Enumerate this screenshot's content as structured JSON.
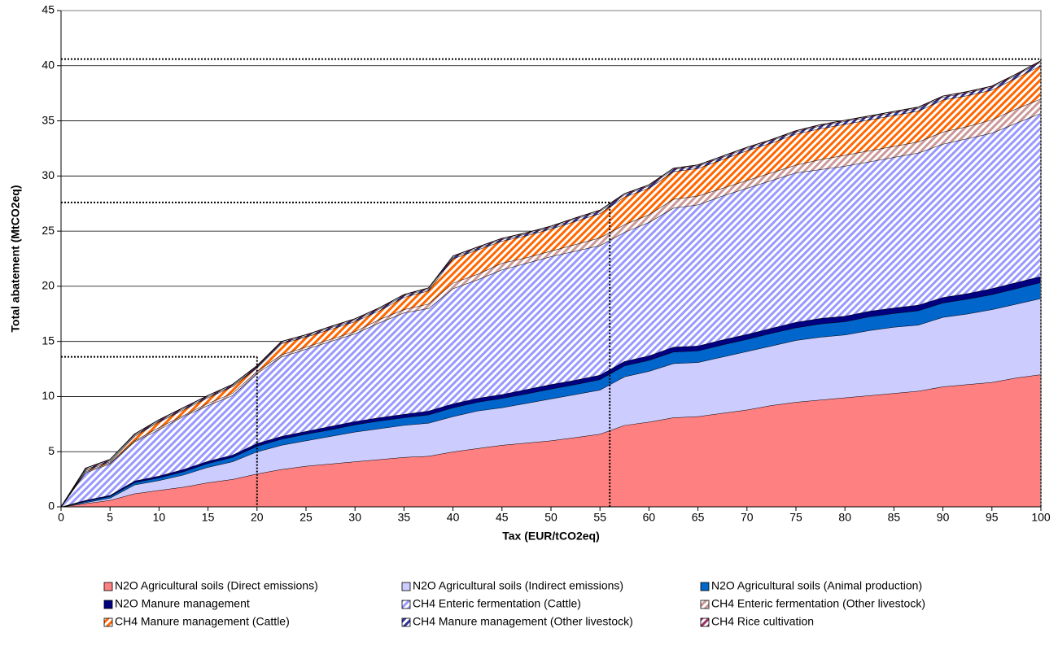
{
  "chart_data": {
    "type": "stacked_area",
    "x_label": "Tax (EUR/tCO2eq)",
    "y_label": "Total abatement (MtCO2eq)",
    "xlim": [
      0,
      100
    ],
    "ylim": [
      0,
      45
    ],
    "xticks": [
      0,
      5,
      10,
      15,
      20,
      25,
      30,
      35,
      40,
      45,
      50,
      55,
      60,
      65,
      70,
      75,
      80,
      85,
      90,
      95,
      100
    ],
    "yticks": [
      0,
      5,
      10,
      15,
      20,
      25,
      30,
      35,
      40,
      45
    ],
    "grid": true,
    "legend": "bottom",
    "x": [
      0,
      2.5,
      5,
      7.5,
      10,
      12.5,
      15,
      17.5,
      20,
      22.5,
      25,
      27.5,
      30,
      32.5,
      35,
      37.5,
      40,
      42.5,
      45,
      47.5,
      50,
      52.5,
      55,
      57.5,
      60,
      62.5,
      65,
      67.5,
      70,
      72.5,
      75,
      77.5,
      80,
      82.5,
      85,
      87.5,
      90,
      92.5,
      95,
      97.5,
      100
    ],
    "series": [
      {
        "name": "N2O Agricultural soils (Direct emissions)",
        "color": "#ff8080",
        "pattern": "solid",
        "values": [
          0,
          0.3,
          0.6,
          1.2,
          1.5,
          1.8,
          2.2,
          2.5,
          3.0,
          3.4,
          3.7,
          3.9,
          4.1,
          4.3,
          4.5,
          4.6,
          5.0,
          5.3,
          5.6,
          5.8,
          6.0,
          6.3,
          6.6,
          7.4,
          7.7,
          8.1,
          8.2,
          8.5,
          8.8,
          9.2,
          9.5,
          9.7,
          9.9,
          10.1,
          10.3,
          10.5,
          10.9,
          11.1,
          11.3,
          11.7,
          12.0
        ]
      },
      {
        "name": "N2O Agricultural soils (Indirect emissions)",
        "color": "#ccccff",
        "pattern": "solid",
        "values": [
          0,
          0.1,
          0.2,
          0.8,
          0.9,
          1.1,
          1.4,
          1.6,
          2.0,
          2.2,
          2.3,
          2.5,
          2.7,
          2.8,
          2.9,
          3.0,
          3.2,
          3.4,
          3.4,
          3.6,
          3.8,
          3.9,
          4.0,
          4.4,
          4.6,
          4.9,
          4.9,
          5.1,
          5.3,
          5.4,
          5.6,
          5.7,
          5.7,
          5.9,
          6.0,
          6.0,
          6.3,
          6.4,
          6.6,
          6.7,
          6.9
        ]
      },
      {
        "name": "N2O Agricultural soils (Animal production)",
        "color": "#0066cc",
        "pattern": "solid",
        "values": [
          0,
          0.1,
          0.15,
          0.2,
          0.25,
          0.3,
          0.35,
          0.4,
          0.5,
          0.55,
          0.6,
          0.6,
          0.65,
          0.7,
          0.7,
          0.75,
          0.8,
          0.8,
          0.85,
          0.85,
          0.9,
          0.9,
          0.95,
          1.0,
          1.0,
          1.05,
          1.05,
          1.1,
          1.1,
          1.15,
          1.15,
          1.2,
          1.2,
          1.25,
          1.25,
          1.3,
          1.3,
          1.35,
          1.35,
          1.4,
          1.45
        ]
      },
      {
        "name": "N2O Manure management",
        "color": "#000080",
        "pattern": "solid",
        "values": [
          0,
          0.1,
          0.1,
          0.15,
          0.15,
          0.2,
          0.2,
          0.2,
          0.25,
          0.25,
          0.25,
          0.3,
          0.3,
          0.3,
          0.3,
          0.35,
          0.35,
          0.35,
          0.35,
          0.4,
          0.4,
          0.4,
          0.4,
          0.4,
          0.4,
          0.45,
          0.45,
          0.45,
          0.45,
          0.45,
          0.5,
          0.5,
          0.5,
          0.5,
          0.5,
          0.5,
          0.5,
          0.5,
          0.55,
          0.55,
          0.55
        ]
      },
      {
        "name": "CH4 Enteric fermentation (Cattle)",
        "color": "#9999ff",
        "pattern": "hatch",
        "values": [
          0,
          2.5,
          2.85,
          3.55,
          4.2,
          4.8,
          5.05,
          5.4,
          6.35,
          7.2,
          7.45,
          7.7,
          7.95,
          8.6,
          9.2,
          9.3,
          10.45,
          10.75,
          11.3,
          11.45,
          11.6,
          11.7,
          11.75,
          11.7,
          12.1,
          12.6,
          12.8,
          13.05,
          13.25,
          13.4,
          13.55,
          13.5,
          13.6,
          13.55,
          13.65,
          13.8,
          13.9,
          14.05,
          14.1,
          14.45,
          14.8
        ]
      },
      {
        "name": "CH4 Enteric fermentation (Other livestock)",
        "color": "#cc9999",
        "pattern": "hatch",
        "values": [
          0,
          0.1,
          0.1,
          0.1,
          0.2,
          0.1,
          0.2,
          0.2,
          0.2,
          0.2,
          0.2,
          0.2,
          0.2,
          0.3,
          0.3,
          0.4,
          0.5,
          0.5,
          0.6,
          0.5,
          0.5,
          0.6,
          0.7,
          0.7,
          0.7,
          0.8,
          0.8,
          0.7,
          0.7,
          0.7,
          0.7,
          0.9,
          1.0,
          1.0,
          1.0,
          1.0,
          1.1,
          1.1,
          1.2,
          1.3,
          1.3
        ]
      },
      {
        "name": "CH4 Manure management (Cattle)",
        "color": "#ff6600",
        "pattern": "hatch",
        "values": [
          0,
          0.1,
          0.1,
          0.4,
          0.5,
          0.5,
          0.5,
          0.6,
          0.3,
          1.0,
          0.9,
          0.9,
          0.9,
          0.8,
          1.1,
          1.2,
          2.2,
          2.2,
          2.0,
          2.0,
          2.0,
          2.1,
          2.2,
          2.5,
          2.4,
          2.5,
          2.5,
          2.6,
          2.7,
          2.7,
          2.8,
          2.8,
          2.8,
          2.8,
          2.8,
          2.8,
          2.9,
          2.8,
          2.7,
          2.8,
          3.0
        ]
      },
      {
        "name": "CH4 Manure management (Other livestock)",
        "color": "#333399",
        "pattern": "hatch",
        "values": [
          0,
          0.1,
          0.1,
          0.1,
          0.1,
          0.1,
          0.1,
          0.1,
          0.1,
          0.1,
          0.1,
          0.15,
          0.15,
          0.15,
          0.15,
          0.15,
          0.15,
          0.15,
          0.15,
          0.15,
          0.15,
          0.2,
          0.2,
          0.2,
          0.2,
          0.2,
          0.2,
          0.2,
          0.2,
          0.2,
          0.2,
          0.25,
          0.25,
          0.25,
          0.25,
          0.25,
          0.25,
          0.25,
          0.25,
          0.25,
          0.35
        ]
      },
      {
        "name": "CH4 Rice cultivation",
        "color": "#993366",
        "pattern": "hatch",
        "values": [
          0,
          0.1,
          0.1,
          0.1,
          0.1,
          0.1,
          0.1,
          0.1,
          0.1,
          0.1,
          0.1,
          0.1,
          0.1,
          0.1,
          0.1,
          0.1,
          0.1,
          0.1,
          0.1,
          0.1,
          0.1,
          0.1,
          0.1,
          0.1,
          0.1,
          0.1,
          0.1,
          0.1,
          0.1,
          0.1,
          0.1,
          0.1,
          0.1,
          0.1,
          0.1,
          0.1,
          0.1,
          0.1,
          0.1,
          0.1,
          0.1
        ]
      }
    ],
    "reference_lines": [
      {
        "x": 20,
        "y": 13.6
      },
      {
        "x": 56,
        "y": 27.6
      },
      {
        "x": 100,
        "y": 40.6
      }
    ]
  }
}
